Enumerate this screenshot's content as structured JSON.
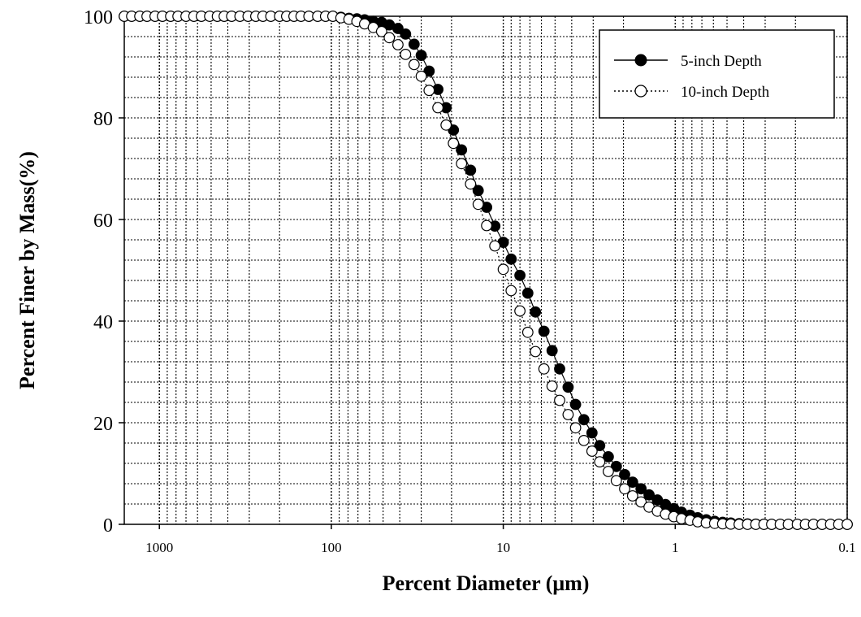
{
  "chart_data": {
    "type": "scatter",
    "title": "",
    "xlabel": "Percent Diameter (μm)",
    "ylabel": "Percent Finer by Mass(%)",
    "x_scale": "log",
    "x_reversed": true,
    "xlim": [
      1600,
      0.1
    ],
    "ylim": [
      0,
      100
    ],
    "x_ticks": [
      1000,
      100,
      10,
      1,
      0.1
    ],
    "x_tick_labels": [
      "1000",
      "100",
      "10",
      "1",
      "0.1"
    ],
    "y_ticks": [
      0,
      20,
      40,
      60,
      80,
      100
    ],
    "y_tick_labels": [
      "0",
      "20",
      "40",
      "60",
      "80",
      "100"
    ],
    "grid": true,
    "legend_position": "top-right",
    "series": [
      {
        "name": "5-inch Depth",
        "marker": "filled-circle",
        "line": "solid",
        "color": "#000000",
        "x": [
          1600,
          1450,
          1300,
          1180,
          1060,
          960,
          860,
          780,
          700,
          630,
          570,
          510,
          460,
          420,
          380,
          340,
          305,
          275,
          250,
          225,
          200,
          182,
          165,
          150,
          135,
          120,
          108,
          98,
          88,
          79,
          71,
          64,
          57,
          51,
          46,
          41,
          37,
          33,
          30,
          27,
          24,
          21.5,
          19.5,
          17.5,
          15.5,
          14,
          12.5,
          11.2,
          10,
          9.0,
          8.0,
          7.2,
          6.5,
          5.8,
          5.2,
          4.7,
          4.2,
          3.8,
          3.4,
          3.05,
          2.75,
          2.45,
          2.2,
          1.97,
          1.77,
          1.58,
          1.42,
          1.27,
          1.14,
          1.02,
          0.92,
          0.82,
          0.74,
          0.66,
          0.59,
          0.53,
          0.475,
          0.425,
          0.38,
          0.34,
          0.305,
          0.275,
          0.245,
          0.22,
          0.195,
          0.175,
          0.157,
          0.14,
          0.125,
          0.112,
          0.1
        ],
        "y": [
          100,
          100,
          100,
          100,
          100,
          100,
          100,
          100,
          100,
          100,
          100,
          100,
          100,
          100,
          100,
          100,
          100,
          100,
          100,
          100,
          100,
          100,
          100,
          100,
          100,
          100,
          100,
          100,
          99.8,
          99.6,
          99.5,
          99.3,
          99.0,
          98.8,
          98.3,
          97.6,
          96.5,
          94.5,
          92.3,
          89.2,
          85.6,
          82.0,
          77.6,
          73.7,
          69.7,
          65.7,
          62.4,
          58.7,
          55.5,
          52.2,
          49.0,
          45.5,
          41.8,
          38.0,
          34.2,
          30.6,
          27.0,
          23.6,
          20.6,
          18.0,
          15.5,
          13.3,
          11.4,
          9.8,
          8.3,
          7.0,
          5.8,
          4.8,
          3.9,
          3.1,
          2.4,
          1.8,
          1.3,
          0.9,
          0.6,
          0.4,
          0.25,
          0.15,
          0.08,
          0.04,
          0.02,
          0,
          0,
          0,
          0,
          0,
          0,
          0,
          0,
          0,
          0
        ]
      },
      {
        "name": "10-inch Depth",
        "marker": "open-circle",
        "line": "dotted",
        "color": "#000000",
        "x": [
          1600,
          1450,
          1300,
          1180,
          1060,
          960,
          860,
          780,
          700,
          630,
          570,
          510,
          460,
          420,
          380,
          340,
          305,
          275,
          250,
          225,
          200,
          182,
          165,
          150,
          135,
          120,
          108,
          98,
          88,
          79,
          71,
          64,
          57,
          51,
          46,
          41,
          37,
          33,
          30,
          27,
          24,
          21.5,
          19.5,
          17.5,
          15.5,
          14,
          12.5,
          11.2,
          10,
          9.0,
          8.0,
          7.2,
          6.5,
          5.8,
          5.2,
          4.7,
          4.2,
          3.8,
          3.4,
          3.05,
          2.75,
          2.45,
          2.2,
          1.97,
          1.77,
          1.58,
          1.42,
          1.27,
          1.14,
          1.02,
          0.92,
          0.82,
          0.74,
          0.66,
          0.59,
          0.53,
          0.475,
          0.425,
          0.38,
          0.34,
          0.305,
          0.275,
          0.245,
          0.22,
          0.195,
          0.175,
          0.157,
          0.14,
          0.125,
          0.112,
          0.1
        ],
        "y": [
          100,
          100,
          100,
          100,
          100,
          100,
          100,
          100,
          100,
          100,
          100,
          100,
          100,
          100,
          100,
          100,
          100,
          100,
          100,
          100,
          100,
          100,
          100,
          100,
          100,
          100,
          100,
          100,
          99.7,
          99.4,
          99.0,
          98.5,
          97.8,
          97.0,
          95.8,
          94.4,
          92.5,
          90.5,
          88.2,
          85.4,
          82.0,
          78.6,
          75.0,
          71.0,
          67.0,
          63.0,
          58.8,
          54.8,
          50.2,
          46.0,
          42.0,
          37.8,
          34.0,
          30.6,
          27.2,
          24.4,
          21.6,
          19.0,
          16.5,
          14.4,
          12.3,
          10.4,
          8.6,
          7.0,
          5.6,
          4.4,
          3.4,
          2.6,
          2.0,
          1.5,
          1.1,
          0.8,
          0.5,
          0.3,
          0.2,
          0.1,
          0.05,
          0,
          0,
          0,
          0,
          0,
          0,
          0,
          0,
          0,
          0,
          0,
          0,
          0,
          0
        ]
      }
    ]
  }
}
